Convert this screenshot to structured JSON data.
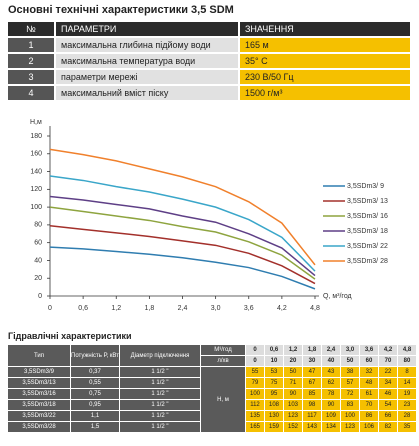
{
  "title": "Основні технічні характеристики 3,5 SDM",
  "specs": {
    "header": [
      "№",
      "ПАРАМЕТРИ",
      "ЗНАЧЕННЯ"
    ],
    "rows": [
      [
        "1",
        "максимальна глибина підйому води",
        "165 м"
      ],
      [
        "2",
        "максимальна температура води",
        "35° С"
      ],
      [
        "3",
        "параметри мережі",
        "230 В/50 Гц"
      ],
      [
        "4",
        "максимальний вміст піску",
        "1500 г/м³"
      ]
    ]
  },
  "chart_data": {
    "type": "line",
    "ylabel": "Н,м",
    "xlabel": "Q, м³/год",
    "x": [
      0,
      0.6,
      1.2,
      1.8,
      2.4,
      3.0,
      3.6,
      4.2,
      4.8
    ],
    "xlim": [
      0,
      4.8
    ],
    "xticks": [
      0,
      {
        "value": 0.6,
        "label": "0,6"
      },
      {
        "value": 1.2,
        "label": "1,2"
      },
      {
        "value": 1.8,
        "label": "1,8"
      },
      {
        "value": 2.4,
        "label": "2,4"
      },
      {
        "value": 3.0,
        "label": "3,0"
      },
      {
        "value": 3.6,
        "label": "3,6"
      },
      {
        "value": 4.2,
        "label": "4,2"
      },
      {
        "value": 4.8,
        "label": "4,8"
      }
    ],
    "ylim": [
      0,
      180
    ],
    "yticks": [
      0,
      20,
      40,
      60,
      80,
      100,
      120,
      140,
      160,
      180
    ],
    "legend": "right",
    "series": [
      {
        "name": "3,5SDm3/ 9",
        "color": "#2f7db0",
        "values": [
          55,
          53,
          50,
          47,
          43,
          38,
          32,
          22,
          8
        ]
      },
      {
        "name": "3,5SDm3/ 13",
        "color": "#a3302b",
        "values": [
          79,
          75,
          71,
          67,
          62,
          57,
          48,
          34,
          14
        ]
      },
      {
        "name": "3,5SDm3/ 16",
        "color": "#8ea43f",
        "values": [
          100,
          95,
          90,
          85,
          78,
          72,
          61,
          46,
          19
        ]
      },
      {
        "name": "3,5SDm3/ 18",
        "color": "#5e3f86",
        "values": [
          112,
          108,
          103,
          98,
          90,
          83,
          70,
          54,
          23
        ]
      },
      {
        "name": "3,5SDm3/ 22",
        "color": "#3aa6c9",
        "values": [
          135,
          130,
          123,
          117,
          109,
          100,
          86,
          66,
          28
        ]
      },
      {
        "name": "3,5SDm3/ 28",
        "color": "#f0802c",
        "values": [
          165,
          159,
          152,
          143,
          134,
          123,
          106,
          82,
          35
        ]
      }
    ]
  },
  "hydraulics": {
    "title": "Гідравлічні характеристики",
    "header": {
      "type": "Тип",
      "power": "Потужність Р, кВт",
      "diameter": "Діаметр підключення",
      "flow_m3h": "М³/год",
      "flow_lmin": "л/хв",
      "head": "Н, м"
    },
    "flow_m3h": [
      "0",
      "0,6",
      "1,2",
      "1,8",
      "2,4",
      "3,0",
      "3,6",
      "4,2",
      "4,8"
    ],
    "flow_lmin": [
      0,
      10,
      20,
      30,
      40,
      50,
      60,
      70,
      80
    ],
    "rows": [
      {
        "type": "3,5SDm3/9",
        "power": "0,37",
        "diameter": "1 1/2 \"",
        "heads": [
          55,
          53,
          50,
          47,
          43,
          38,
          32,
          22,
          8
        ]
      },
      {
        "type": "3,5SDm3/13",
        "power": "0,55",
        "diameter": "1 1/2 \"",
        "heads": [
          79,
          75,
          71,
          67,
          62,
          57,
          48,
          34,
          14
        ]
      },
      {
        "type": "3,5SDm3/16",
        "power": "0,75",
        "diameter": "1 1/2 \"",
        "heads": [
          100,
          95,
          90,
          85,
          78,
          72,
          61,
          46,
          19
        ]
      },
      {
        "type": "3,5SDm3/18",
        "power": "0,95",
        "diameter": "1 1/2 \"",
        "heads": [
          112,
          108,
          103,
          98,
          90,
          83,
          70,
          54,
          23
        ]
      },
      {
        "type": "3,5SDm3/22",
        "power": "1,1",
        "diameter": "1 1/2 \"",
        "heads": [
          135,
          130,
          123,
          117,
          109,
          100,
          86,
          66,
          28
        ]
      },
      {
        "type": "3,5SDm3/28",
        "power": "1,5",
        "diameter": "1 1/2 \"",
        "heads": [
          165,
          159,
          152,
          143,
          134,
          123,
          106,
          82,
          35
        ]
      }
    ]
  }
}
